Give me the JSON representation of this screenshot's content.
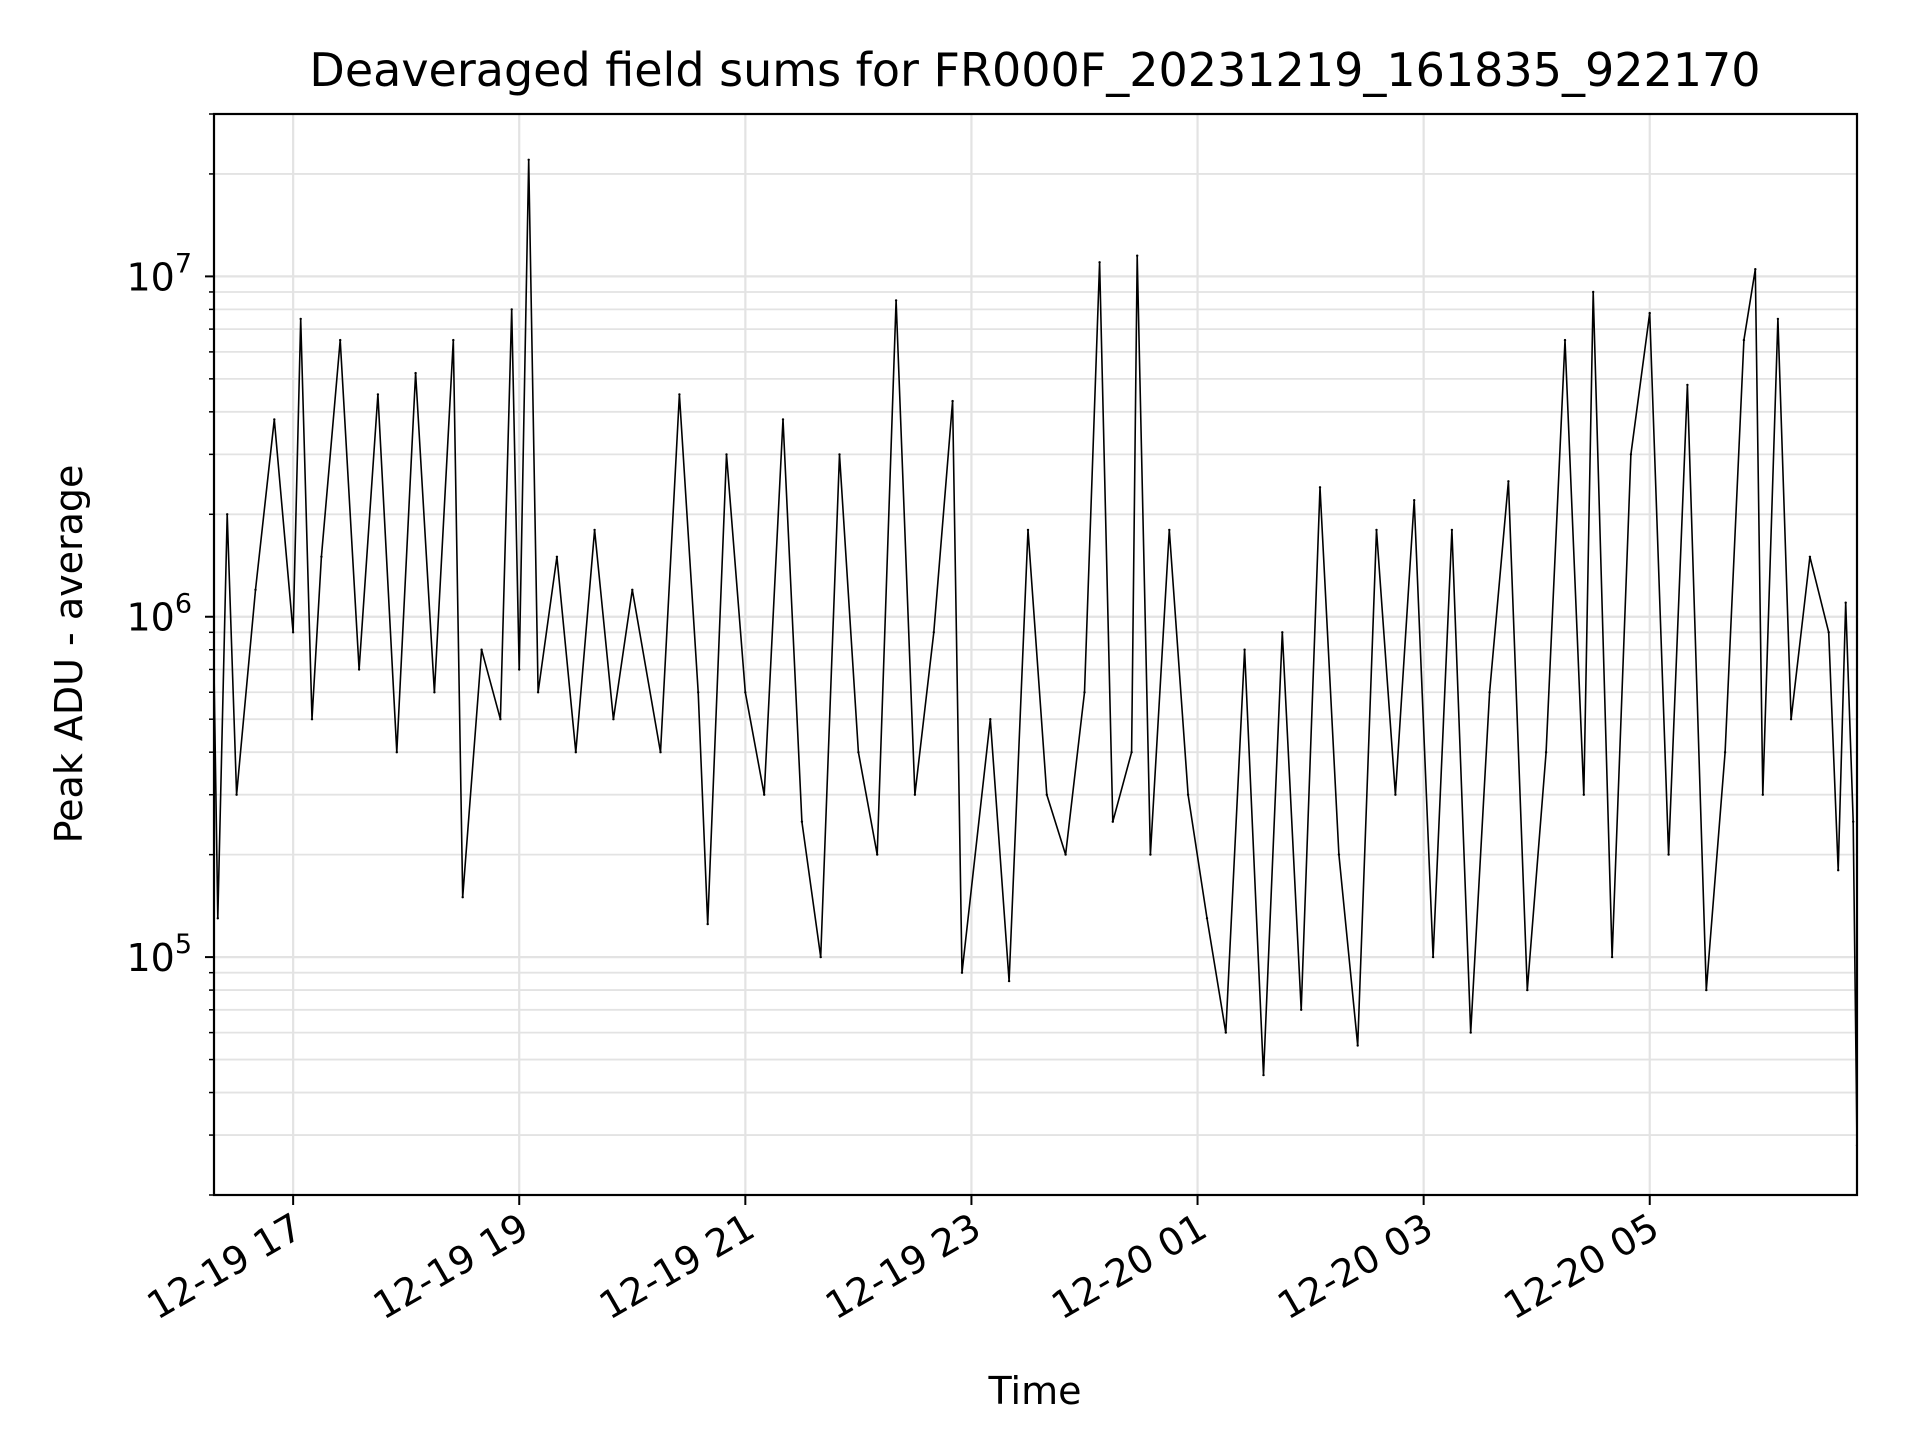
{
  "chart_data": {
    "type": "line",
    "title": "Deaveraged field sums for FR000F_20231219_161835_922170",
    "xlabel": "Time",
    "ylabel": "Peak ADU - average",
    "y_scale": "log",
    "ylim": [
      20000,
      30000000
    ],
    "xlim": [
      "2023-12-19 16:18",
      "2023-12-20 06:50"
    ],
    "grid": true,
    "line_color": "#000000",
    "x_ticks": [
      {
        "value": "2023-12-19 17:00",
        "label": "12-19 17"
      },
      {
        "value": "2023-12-19 19:00",
        "label": "12-19 19"
      },
      {
        "value": "2023-12-19 21:00",
        "label": "12-19 21"
      },
      {
        "value": "2023-12-19 23:00",
        "label": "12-19 23"
      },
      {
        "value": "2023-12-20 01:00",
        "label": "12-20 01"
      },
      {
        "value": "2023-12-20 03:00",
        "label": "12-20 03"
      },
      {
        "value": "2023-12-20 05:00",
        "label": "12-20 05"
      }
    ],
    "y_ticks": [
      {
        "value": 100000,
        "base": "10",
        "exp": "5"
      },
      {
        "value": 1000000,
        "base": "10",
        "exp": "6"
      },
      {
        "value": 10000000,
        "base": "10",
        "exp": "7"
      }
    ],
    "series": [
      {
        "points": [
          [
            "2023-12-19 16:18",
            700000
          ],
          [
            "2023-12-19 16:20",
            130000
          ],
          [
            "2023-12-19 16:25",
            2000000
          ],
          [
            "2023-12-19 16:30",
            300000
          ],
          [
            "2023-12-19 16:40",
            1200000
          ],
          [
            "2023-12-19 16:50",
            3800000
          ],
          [
            "2023-12-19 17:00",
            900000
          ],
          [
            "2023-12-19 17:04",
            7500000
          ],
          [
            "2023-12-19 17:10",
            500000
          ],
          [
            "2023-12-19 17:15",
            1500000
          ],
          [
            "2023-12-19 17:25",
            6500000
          ],
          [
            "2023-12-19 17:35",
            700000
          ],
          [
            "2023-12-19 17:45",
            4500000
          ],
          [
            "2023-12-19 17:55",
            400000
          ],
          [
            "2023-12-19 18:05",
            5200000
          ],
          [
            "2023-12-19 18:15",
            600000
          ],
          [
            "2023-12-19 18:25",
            6500000
          ],
          [
            "2023-12-19 18:30",
            150000
          ],
          [
            "2023-12-19 18:40",
            800000
          ],
          [
            "2023-12-19 18:50",
            500000
          ],
          [
            "2023-12-19 18:56",
            8000000
          ],
          [
            "2023-12-19 19:00",
            700000
          ],
          [
            "2023-12-19 19:05",
            22000000
          ],
          [
            "2023-12-19 19:10",
            600000
          ],
          [
            "2023-12-19 19:20",
            1500000
          ],
          [
            "2023-12-19 19:30",
            400000
          ],
          [
            "2023-12-19 19:40",
            1800000
          ],
          [
            "2023-12-19 19:50",
            500000
          ],
          [
            "2023-12-19 20:00",
            1200000
          ],
          [
            "2023-12-19 20:15",
            400000
          ],
          [
            "2023-12-19 20:25",
            4500000
          ],
          [
            "2023-12-19 20:35",
            600000
          ],
          [
            "2023-12-19 20:40",
            125000
          ],
          [
            "2023-12-19 20:50",
            3000000
          ],
          [
            "2023-12-19 21:00",
            600000
          ],
          [
            "2023-12-19 21:10",
            300000
          ],
          [
            "2023-12-19 21:20",
            3800000
          ],
          [
            "2023-12-19 21:30",
            250000
          ],
          [
            "2023-12-19 21:40",
            100000
          ],
          [
            "2023-12-19 21:50",
            3000000
          ],
          [
            "2023-12-19 22:00",
            400000
          ],
          [
            "2023-12-19 22:10",
            200000
          ],
          [
            "2023-12-19 22:20",
            8500000
          ],
          [
            "2023-12-19 22:30",
            300000
          ],
          [
            "2023-12-19 22:40",
            900000
          ],
          [
            "2023-12-19 22:50",
            4300000
          ],
          [
            "2023-12-19 22:55",
            90000
          ],
          [
            "2023-12-19 23:10",
            500000
          ],
          [
            "2023-12-19 23:20",
            85000
          ],
          [
            "2023-12-19 23:30",
            1800000
          ],
          [
            "2023-12-19 23:40",
            300000
          ],
          [
            "2023-12-19 23:50",
            200000
          ],
          [
            "2023-12-20 00:00",
            600000
          ],
          [
            "2023-12-20 00:08",
            11000000
          ],
          [
            "2023-12-20 00:15",
            250000
          ],
          [
            "2023-12-20 00:25",
            400000
          ],
          [
            "2023-12-20 00:28",
            11500000
          ],
          [
            "2023-12-20 00:35",
            200000
          ],
          [
            "2023-12-20 00:45",
            1800000
          ],
          [
            "2023-12-20 00:55",
            300000
          ],
          [
            "2023-12-20 01:05",
            130000
          ],
          [
            "2023-12-20 01:15",
            60000
          ],
          [
            "2023-12-20 01:25",
            800000
          ],
          [
            "2023-12-20 01:35",
            45000
          ],
          [
            "2023-12-20 01:45",
            900000
          ],
          [
            "2023-12-20 01:55",
            70000
          ],
          [
            "2023-12-20 02:05",
            2400000
          ],
          [
            "2023-12-20 02:15",
            200000
          ],
          [
            "2023-12-20 02:25",
            55000
          ],
          [
            "2023-12-20 02:35",
            1800000
          ],
          [
            "2023-12-20 02:45",
            300000
          ],
          [
            "2023-12-20 02:55",
            2200000
          ],
          [
            "2023-12-20 03:05",
            100000
          ],
          [
            "2023-12-20 03:15",
            1800000
          ],
          [
            "2023-12-20 03:25",
            60000
          ],
          [
            "2023-12-20 03:35",
            600000
          ],
          [
            "2023-12-20 03:45",
            2500000
          ],
          [
            "2023-12-20 03:55",
            80000
          ],
          [
            "2023-12-20 04:05",
            400000
          ],
          [
            "2023-12-20 04:15",
            6500000
          ],
          [
            "2023-12-20 04:25",
            300000
          ],
          [
            "2023-12-20 04:30",
            9000000
          ],
          [
            "2023-12-20 04:40",
            100000
          ],
          [
            "2023-12-20 04:50",
            3000000
          ],
          [
            "2023-12-20 05:00",
            7800000
          ],
          [
            "2023-12-20 05:10",
            200000
          ],
          [
            "2023-12-20 05:20",
            4800000
          ],
          [
            "2023-12-20 05:30",
            80000
          ],
          [
            "2023-12-20 05:40",
            400000
          ],
          [
            "2023-12-20 05:50",
            6500000
          ],
          [
            "2023-12-20 05:56",
            10500000
          ],
          [
            "2023-12-20 06:00",
            300000
          ],
          [
            "2023-12-20 06:08",
            7500000
          ],
          [
            "2023-12-20 06:15",
            500000
          ],
          [
            "2023-12-20 06:25",
            1500000
          ],
          [
            "2023-12-20 06:35",
            900000
          ],
          [
            "2023-12-20 06:40",
            180000
          ],
          [
            "2023-12-20 06:44",
            1100000
          ],
          [
            "2023-12-20 06:48",
            250000
          ],
          [
            "2023-12-20 06:50",
            28000
          ]
        ]
      }
    ]
  }
}
